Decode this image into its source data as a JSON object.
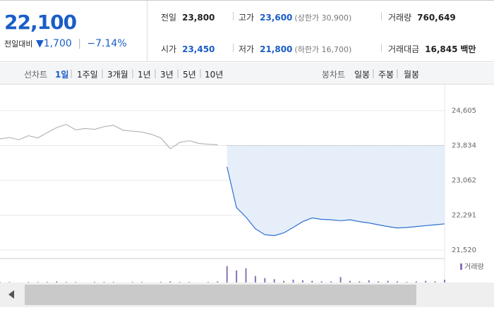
{
  "quote": {
    "price": "22,100",
    "change_label": "전일대비",
    "change": "▼1,700",
    "change_rate": "−7.14%",
    "stats": [
      {
        "label": "전일",
        "value": "23,800"
      },
      {
        "label": "고가",
        "value": "23,600",
        "note": "(상한가 30,900)"
      },
      {
        "label": "거래량",
        "value": "760,649"
      },
      {
        "label": "시가",
        "value": "23,450"
      },
      {
        "label": "저가",
        "value": "21,800",
        "note": "(하한가 16,700)"
      },
      {
        "label": "거래대금",
        "value": "16,845",
        "unit": "백만"
      }
    ]
  },
  "tabs": {
    "line_label": "선차트",
    "line": [
      "1일",
      "1주일",
      "3개월",
      "1년",
      "3년",
      "5년",
      "10년"
    ],
    "candle_label": "봉차트",
    "candle": [
      "일봉",
      "주봉",
      "월봉"
    ]
  },
  "chart_data": [
    {
      "type": "line",
      "grid": true,
      "ylim": [
        21520,
        24605
      ],
      "yticks": [
        {
          "value": 24605,
          "label": "24,605"
        },
        {
          "value": 23834,
          "label": "23,834"
        },
        {
          "value": 23062,
          "label": "23,062"
        },
        {
          "value": 22291,
          "label": "22,291"
        },
        {
          "value": 21520,
          "label": "21,520"
        }
      ],
      "series": [
        {
          "color": "#b5b5b5",
          "values": [
            23980,
            24010,
            23960,
            24050,
            24000,
            24120,
            24230,
            24300,
            24180,
            24210,
            24190,
            24250,
            24280,
            24170,
            24150,
            24130,
            24080,
            24000,
            23760,
            23900,
            23940,
            23880,
            23860,
            23850,
            null,
            null,
            null,
            null,
            null,
            null,
            null,
            null,
            null,
            null,
            null,
            null,
            null,
            null,
            null,
            null,
            null,
            null,
            null,
            null,
            null,
            null,
            null,
            null
          ]
        },
        {
          "color": "#2f6fd0",
          "area": "#e6eefa",
          "values": [
            null,
            null,
            null,
            null,
            null,
            null,
            null,
            null,
            null,
            null,
            null,
            null,
            null,
            null,
            null,
            null,
            null,
            null,
            null,
            null,
            null,
            null,
            null,
            null,
            23360,
            22460,
            22250,
            21990,
            21860,
            21840,
            21900,
            22020,
            22150,
            22230,
            22200,
            22190,
            22170,
            22190,
            22150,
            22120,
            22080,
            22040,
            22010,
            22020,
            22040,
            22060,
            22080,
            22100
          ]
        }
      ]
    },
    {
      "type": "bar",
      "ylim": [
        0,
        40
      ],
      "series": [
        {
          "name": "거래량",
          "color": "#8a72b4",
          "values": [
            1,
            1,
            0,
            1,
            1,
            1,
            2,
            1,
            1,
            0,
            1,
            1,
            1,
            0,
            1,
            1,
            0,
            1,
            2,
            1,
            1,
            0,
            1,
            2,
            30,
            22,
            26,
            12,
            8,
            6,
            3,
            5,
            4,
            3,
            2,
            2,
            10,
            3,
            2,
            4,
            2,
            3,
            2,
            1,
            2,
            3,
            2,
            5
          ]
        }
      ]
    }
  ]
}
